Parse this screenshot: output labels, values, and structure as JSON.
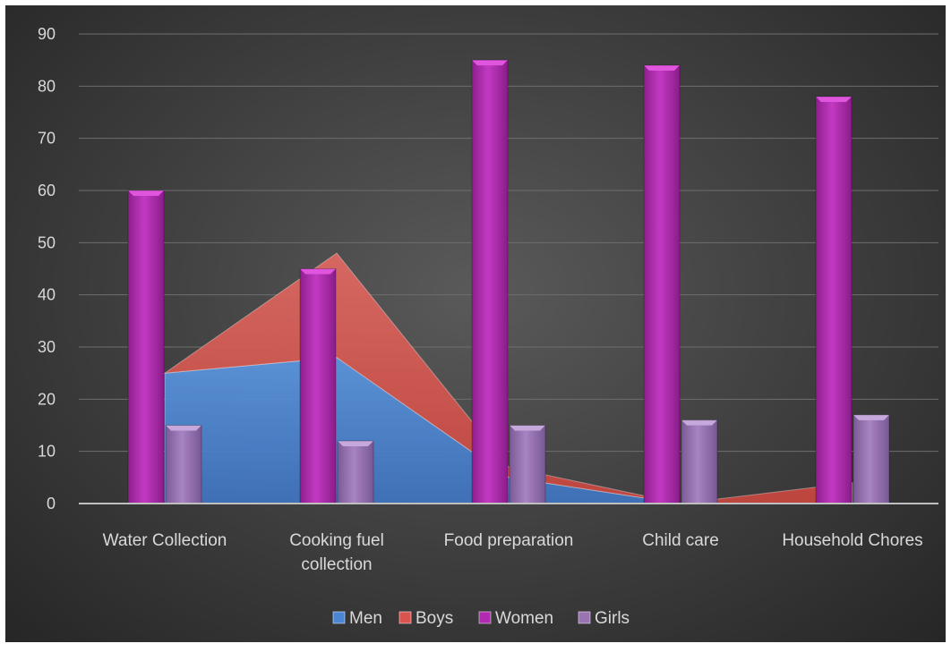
{
  "chart_data": {
    "type": "bar",
    "categories": [
      [
        "Water Collection"
      ],
      [
        "Cooking fuel",
        "collection"
      ],
      [
        "Food preparation"
      ],
      [
        "Child care"
      ],
      [
        "Household Chores"
      ]
    ],
    "ylim": [
      0,
      90
    ],
    "yticks": [
      0,
      10,
      20,
      30,
      40,
      50,
      60,
      70,
      80,
      90
    ],
    "grid": true,
    "legend_position": "bottom",
    "series": [
      {
        "name": "Men",
        "kind": "area",
        "color": "#4a86d4",
        "values": [
          25,
          28,
          5,
          0,
          0
        ]
      },
      {
        "name": "Boys",
        "kind": "area",
        "color": "#d9534f",
        "values": [
          0,
          20,
          2,
          0,
          4
        ]
      },
      {
        "name": "Women",
        "kind": "bar",
        "color": "#b12bb0",
        "values": [
          60,
          45,
          85,
          84,
          78
        ]
      },
      {
        "name": "Girls",
        "kind": "bar",
        "color": "#9a73b3",
        "values": [
          15,
          12,
          15,
          16,
          17
        ]
      }
    ]
  }
}
